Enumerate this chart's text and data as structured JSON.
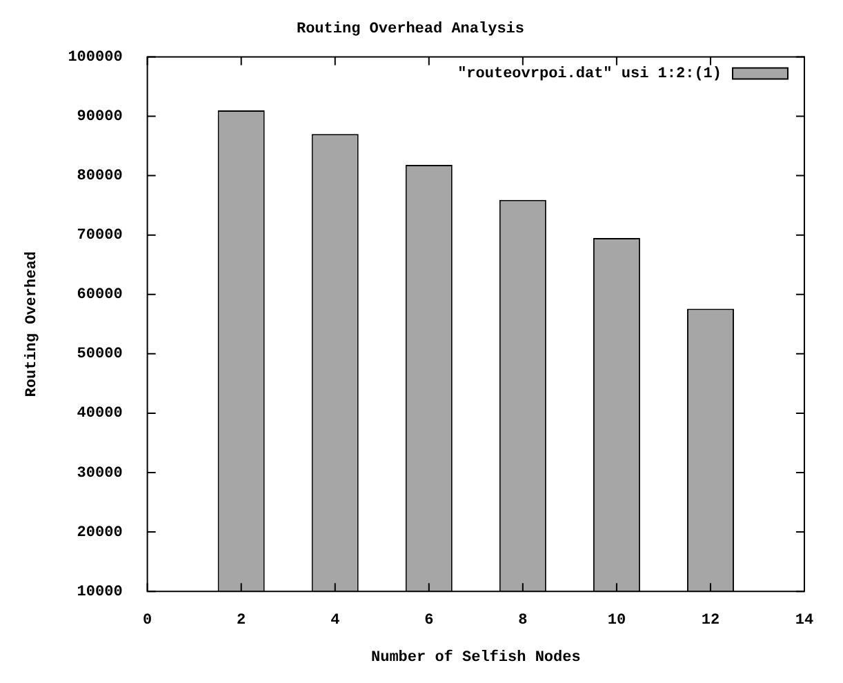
{
  "chart_data": {
    "type": "bar",
    "title": "Routing Overhead Analysis",
    "xlabel": "Number of Selfish Nodes",
    "ylabel": "Routing Overhead",
    "x": [
      2,
      4,
      6,
      8,
      10,
      12
    ],
    "series": [
      {
        "name": "\"routeovrpoi.dat\" usi 1:2:(1)",
        "color": "#a6a6a6",
        "values": [
          91000,
          87000,
          81800,
          75900,
          69500,
          57600
        ]
      }
    ],
    "xlim": [
      0,
      14
    ],
    "xticks": [
      0,
      2,
      4,
      6,
      8,
      10,
      12,
      14
    ],
    "ylim": [
      10000,
      100000
    ],
    "yticks": [
      10000,
      20000,
      30000,
      40000,
      50000,
      60000,
      70000,
      80000,
      90000,
      100000
    ],
    "legend": "top right"
  }
}
